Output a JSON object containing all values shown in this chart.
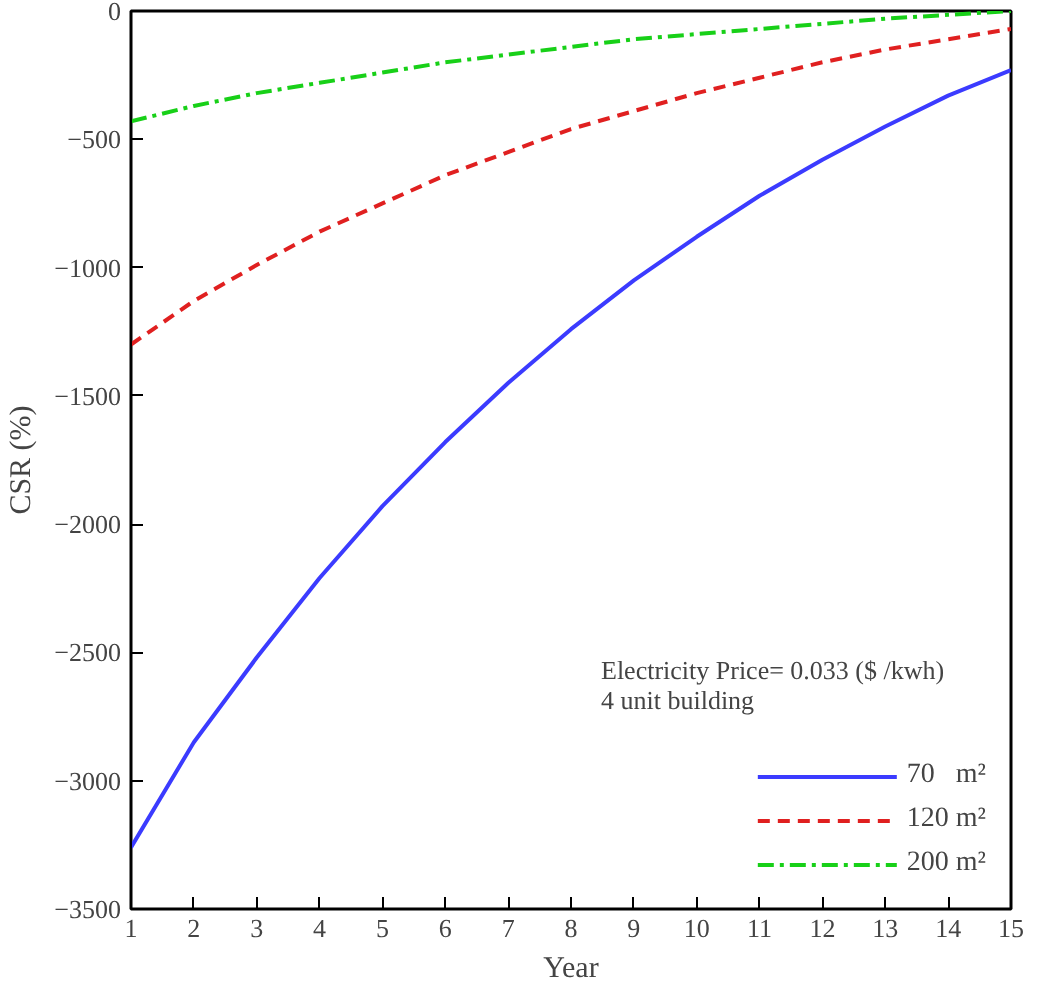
{
  "chart_data": {
    "type": "line",
    "xlabel": "Year",
    "ylabel": "CSR (%)",
    "x": [
      1,
      2,
      3,
      4,
      5,
      6,
      7,
      8,
      9,
      10,
      11,
      12,
      13,
      14,
      15
    ],
    "xlim": [
      1,
      15
    ],
    "xticks": [
      1,
      2,
      3,
      4,
      5,
      6,
      7,
      8,
      9,
      10,
      11,
      12,
      13,
      14,
      15
    ],
    "ylim": [
      -3500,
      0
    ],
    "yticks": [
      -3500,
      -3000,
      -2500,
      -2000,
      -1500,
      -1000,
      -500,
      0
    ],
    "grid": false,
    "legend": "bottom right",
    "marker": "none",
    "annotations": [
      "Electricity Price=   0.033 ($ /kwh)",
      "4 unit building"
    ],
    "series": [
      {
        "name": "70   m²",
        "color": "#3b3bff",
        "line_style": "solid",
        "values": [
          -3260,
          -2850,
          -2520,
          -2210,
          -1930,
          -1680,
          -1450,
          -1240,
          -1050,
          -880,
          -720,
          -580,
          -450,
          -330,
          -230
        ]
      },
      {
        "name": "120 m²",
        "color": "#e02020",
        "line_style": "dashed",
        "values": [
          -1300,
          -1130,
          -990,
          -860,
          -750,
          -640,
          -550,
          -460,
          -390,
          -320,
          -260,
          -200,
          -150,
          -110,
          -70
        ]
      },
      {
        "name": "200 m²",
        "color": "#18d018",
        "line_style": "dashdot",
        "values": [
          -430,
          -370,
          -320,
          -280,
          -240,
          -200,
          -170,
          -140,
          -110,
          -90,
          -70,
          -50,
          -30,
          -15,
          0
        ]
      }
    ]
  }
}
